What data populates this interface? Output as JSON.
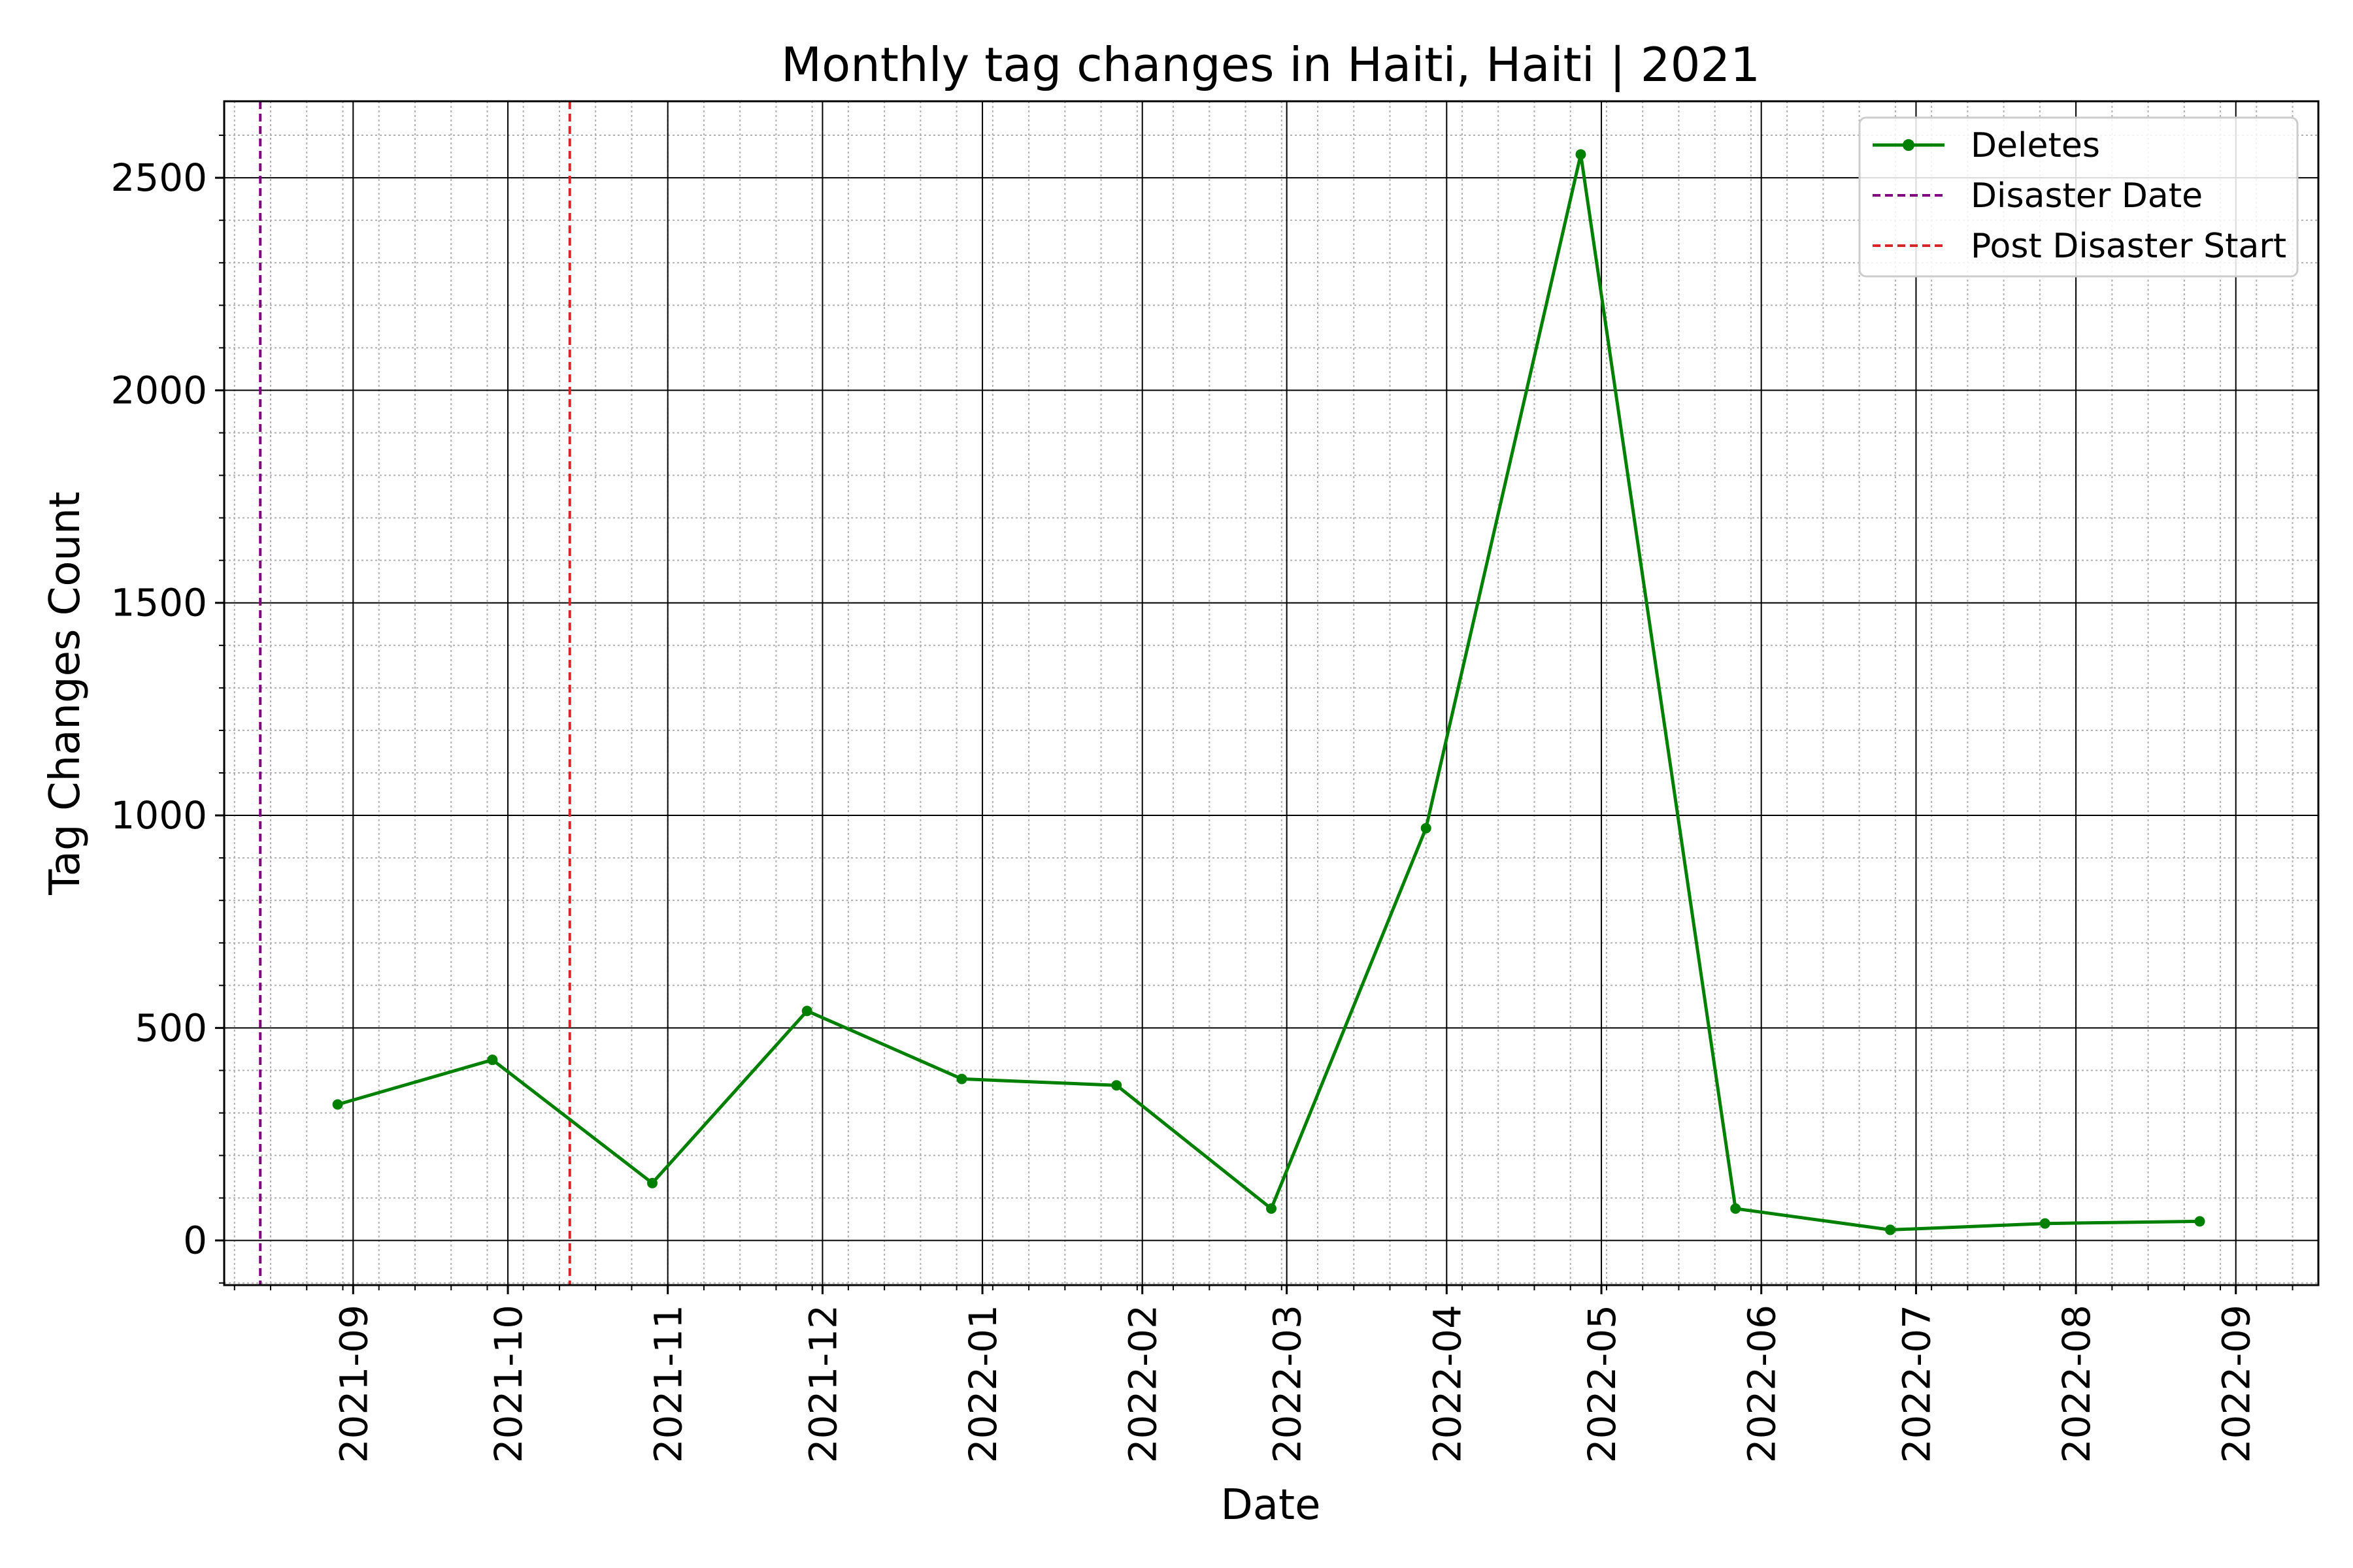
{
  "chart_data": {
    "type": "line",
    "title": "Monthly tag changes in Haiti, Haiti | 2021",
    "xlabel": "Date",
    "ylabel": "Tag Changes Count",
    "xlim": [
      "2021-08-07",
      "2022-09-17"
    ],
    "ylim": [
      -105,
      2680
    ],
    "x_ticks": [
      "2021-09",
      "2021-10",
      "2021-11",
      "2021-12",
      "2022-01",
      "2022-02",
      "2022-03",
      "2022-04",
      "2022-05",
      "2022-06",
      "2022-07",
      "2022-08",
      "2022-09"
    ],
    "x_tick_dates": [
      "2021-09-01",
      "2021-10-01",
      "2021-11-01",
      "2021-12-01",
      "2022-01-01",
      "2022-02-01",
      "2022-03-01",
      "2022-04-01",
      "2022-05-01",
      "2022-06-01",
      "2022-07-01",
      "2022-08-01",
      "2022-09-01"
    ],
    "y_ticks": [
      0,
      500,
      1000,
      1500,
      2000,
      2500
    ],
    "y_minor_step": 100,
    "x_minor_ticks": "weekly",
    "grid": {
      "major": true,
      "minor": true
    },
    "legend_position": "top-right",
    "series": [
      {
        "name": "Deletes",
        "color": "#008000",
        "marker": "dot",
        "x": [
          "2021-08-29",
          "2021-09-28",
          "2021-10-29",
          "2021-11-28",
          "2021-12-28",
          "2022-01-27",
          "2022-02-26",
          "2022-03-28",
          "2022-04-27",
          "2022-05-27",
          "2022-06-26",
          "2022-07-26",
          "2022-08-25"
        ],
        "values": [
          320,
          425,
          135,
          540,
          380,
          365,
          75,
          970,
          2555,
          75,
          25,
          40,
          45
        ]
      }
    ],
    "reference_lines": [
      {
        "name": "Disaster Date",
        "x": "2021-08-14",
        "color": "#800080",
        "style": "dashed"
      },
      {
        "name": "Post Disaster Start",
        "x": "2021-10-13",
        "color": "#d62728",
        "style": "dashed"
      }
    ]
  }
}
